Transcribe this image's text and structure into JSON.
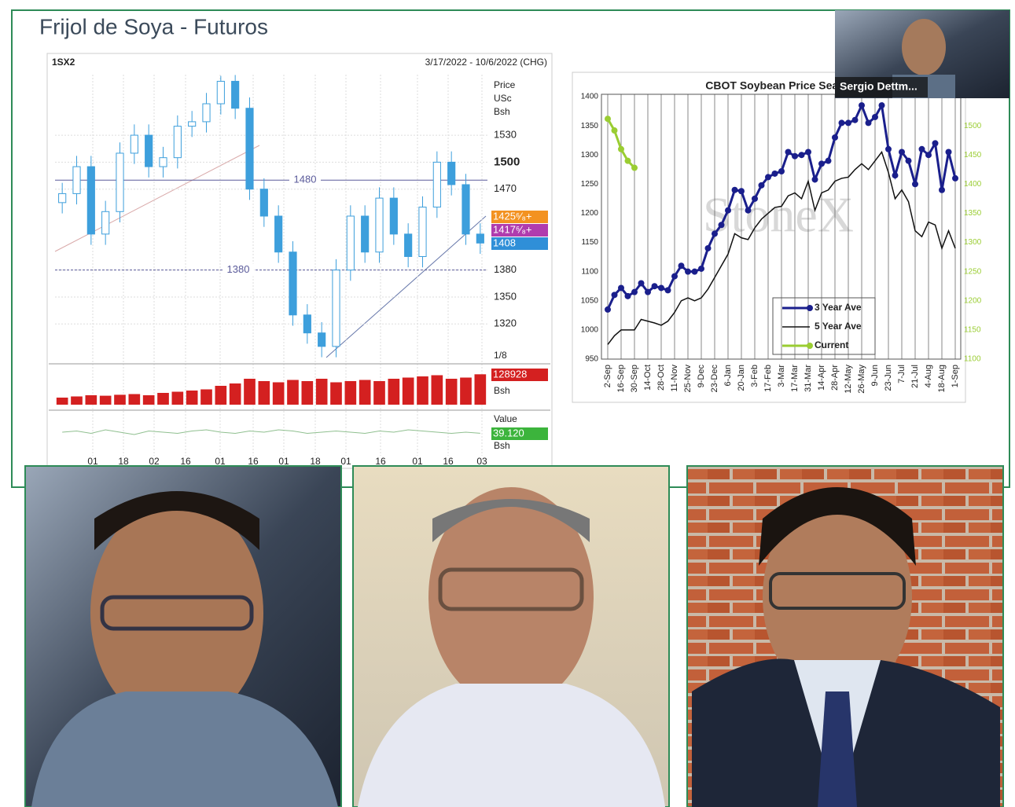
{
  "slide": {
    "title": "Frijol de Soya - Futuros"
  },
  "chart_data": [
    {
      "type": "candlestick",
      "symbol": "1SX2",
      "date_range": "3/17/2022 - 10/6/2022 (CHG)",
      "y_axis_label": [
        "Price",
        "USc",
        "Bsh"
      ],
      "ylim": [
        1280,
        1600
      ],
      "yticks": [
        1320,
        1350,
        1380,
        1470,
        1500,
        1530
      ],
      "x_tick_labels": [
        "01",
        "18",
        "02",
        "16",
        "01",
        "16",
        "01",
        "18",
        "01",
        "16",
        "01",
        "16",
        "03"
      ],
      "open": [
        1455,
        1465,
        1495,
        1420,
        1445,
        1510,
        1530,
        1495,
        1505,
        1540,
        1545,
        1565,
        1590,
        1560,
        1470,
        1440,
        1400,
        1330,
        1310,
        1295,
        1380,
        1440,
        1400,
        1460,
        1420,
        1395,
        1450,
        1500,
        1475,
        1420
      ],
      "high": [
        1477,
        1507,
        1507,
        1457,
        1522,
        1542,
        1542,
        1517,
        1552,
        1557,
        1577,
        1596,
        1597,
        1572,
        1482,
        1452,
        1412,
        1342,
        1322,
        1392,
        1452,
        1452,
        1472,
        1472,
        1432,
        1462,
        1512,
        1512,
        1487,
        1432
      ],
      "low": [
        1443,
        1453,
        1408,
        1408,
        1433,
        1498,
        1483,
        1483,
        1493,
        1528,
        1533,
        1553,
        1548,
        1458,
        1428,
        1388,
        1318,
        1298,
        1283,
        1283,
        1368,
        1388,
        1388,
        1408,
        1383,
        1383,
        1438,
        1463,
        1408,
        1398
      ],
      "close": [
        1465,
        1495,
        1420,
        1445,
        1510,
        1530,
        1495,
        1505,
        1540,
        1545,
        1565,
        1590,
        1560,
        1470,
        1440,
        1400,
        1330,
        1310,
        1295,
        1380,
        1440,
        1400,
        1460,
        1420,
        1395,
        1450,
        1500,
        1475,
        1420,
        1410
      ],
      "color": "#3d9fdc",
      "reference_lines": [
        1480,
        1380
      ],
      "price_tags": [
        {
          "label": "1425⁶⁄₈+",
          "color": "#f39221"
        },
        {
          "label": "1417⁶⁄₈+",
          "color": "#b03cae"
        },
        {
          "label": "1408",
          "color": "#2f8fd8"
        }
      ],
      "fraction_label": "1/8",
      "volume": {
        "values": [
          30000,
          35000,
          40000,
          38000,
          42000,
          45000,
          40000,
          50000,
          55000,
          60000,
          65000,
          80000,
          90000,
          110000,
          100000,
          95000,
          105000,
          100000,
          110000,
          95000,
          100000,
          105000,
          100000,
          110000,
          115000,
          120000,
          125000,
          110000,
          115000,
          128928
        ],
        "ylim": [
          0,
          150000
        ],
        "color": "#d42020",
        "last_label": "128928",
        "unit": "Bsh"
      },
      "indicator": {
        "name": "Value",
        "values": [
          40,
          41,
          39,
          42,
          40,
          38,
          41,
          40,
          39,
          41,
          42,
          40,
          39,
          41,
          40,
          42,
          41,
          39,
          40,
          41,
          40,
          39,
          41,
          40,
          42,
          41,
          40,
          39,
          40,
          39.12
        ],
        "ylim": [
          30,
          50
        ],
        "color": "#8fbf8f",
        "tag_color": "#3cb43c",
        "last_label": "39.120",
        "unit": "Bsh"
      }
    },
    {
      "type": "line",
      "title": "CBOT Soybean Price Seasonal",
      "watermark": "StoneX",
      "grid": true,
      "legend": "bottom-right",
      "categories": [
        "2-Sep",
        null,
        "16-Sep",
        null,
        "30-Sep",
        null,
        "14-Oct",
        null,
        "28-Oct",
        null,
        "11-Nov",
        null,
        "25-Nov",
        null,
        "9-Dec",
        null,
        "23-Dec",
        null,
        "6-Jan",
        null,
        "20-Jan",
        null,
        "3-Feb",
        null,
        "17-Feb",
        null,
        "3-Mar",
        null,
        "17-Mar",
        null,
        "31-Mar",
        null,
        "14-Apr",
        null,
        "28-Apr",
        null,
        "12-May",
        null,
        "26-May",
        null,
        "9-Jun",
        null,
        "23-Jun",
        null,
        "7-Jul",
        null,
        "21-Jul",
        null,
        "4-Aug",
        null,
        "18-Aug",
        null,
        "1-Sep"
      ],
      "ylim": [
        950,
        1400
      ],
      "yticks": [
        950,
        1000,
        1050,
        1100,
        1150,
        1200,
        1250,
        1300,
        1350,
        1400
      ],
      "y2lim": [
        1100,
        1550
      ],
      "y2ticks": [
        1100,
        1150,
        1200,
        1250,
        1300,
        1350,
        1400,
        1450,
        1500
      ],
      "series": [
        {
          "name": "3 Year Ave",
          "color": "#1a1f8c",
          "markers": true,
          "values": [
            1035,
            1060,
            1072,
            1058,
            1065,
            1080,
            1065,
            1075,
            1072,
            1068,
            1092,
            1110,
            1100,
            1100,
            1105,
            1140,
            1165,
            1180,
            1205,
            1240,
            1238,
            1205,
            1225,
            1248,
            1262,
            1268,
            1272,
            1305,
            1298,
            1300,
            1305,
            1258,
            1285,
            1290,
            1330,
            1355,
            1355,
            1360,
            1385,
            1355,
            1365,
            1385,
            1310,
            1265,
            1305,
            1290,
            1250,
            1310,
            1300,
            1320,
            1240,
            1305,
            1260
          ]
        },
        {
          "name": "5 Year Ave",
          "color": "#111111",
          "markers": false,
          "values": [
            975,
            990,
            1000,
            1000,
            1000,
            1018,
            1015,
            1012,
            1008,
            1015,
            1030,
            1050,
            1055,
            1050,
            1055,
            1070,
            1090,
            1110,
            1130,
            1165,
            1158,
            1155,
            1175,
            1190,
            1200,
            1210,
            1212,
            1230,
            1235,
            1225,
            1255,
            1205,
            1235,
            1240,
            1255,
            1260,
            1262,
            1275,
            1285,
            1275,
            1290,
            1305,
            1270,
            1225,
            1240,
            1220,
            1170,
            1160,
            1185,
            1180,
            1140,
            1170,
            1140
          ]
        },
        {
          "name": "Current",
          "color": "#9acd32",
          "markers": true,
          "axis": "y2",
          "values": [
            1512,
            1492,
            1460,
            1440,
            1428,
            null,
            null,
            null,
            null,
            null,
            null,
            null,
            null,
            null,
            null,
            null,
            null,
            null,
            null,
            null,
            null,
            null,
            null,
            null,
            null,
            null,
            null,
            null,
            null,
            null,
            null,
            null,
            null,
            null,
            null,
            null,
            null,
            null,
            null,
            null,
            null,
            null,
            null,
            null,
            null,
            null,
            null,
            null,
            null,
            null,
            null,
            null,
            null
          ]
        }
      ]
    }
  ],
  "participants": [
    {
      "name": "Sergio Dettm..."
    }
  ]
}
